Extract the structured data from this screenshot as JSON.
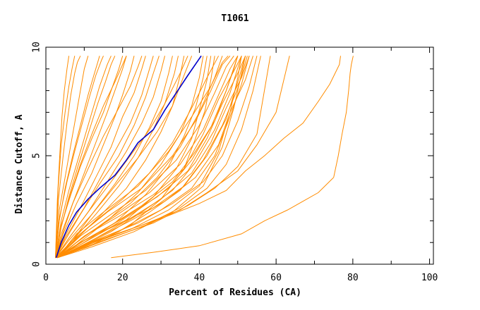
{
  "chart_data": {
    "type": "line",
    "title": "T1061",
    "xlabel": "Percent of Residues (CA)",
    "ylabel": "Distance Cutoff, A",
    "xlim": [
      0,
      101
    ],
    "ylim": [
      0,
      10
    ],
    "xticks": [
      "0",
      "20",
      "40",
      "60",
      "80",
      "100"
    ],
    "yticks": [
      "0",
      "5",
      "10"
    ],
    "grid": false,
    "legend": "none",
    "colors": {
      "background_lines": "#ff8c00",
      "highlight": "#0000cc",
      "axis": "#000000"
    },
    "highlight_series": {
      "x": [
        2.7,
        4,
        6,
        8,
        11,
        14,
        18,
        21,
        24,
        28,
        31,
        34,
        37,
        40.5
      ],
      "y": [
        0.3,
        1.0,
        1.8,
        2.4,
        3.0,
        3.5,
        4.1,
        4.8,
        5.6,
        6.2,
        7.1,
        7.9,
        8.7,
        9.6
      ]
    },
    "background_series": [
      {
        "x": [
          17,
          28,
          40,
          51,
          57,
          63,
          67,
          71,
          75
        ],
        "y": [
          0.3,
          0.55,
          0.85,
          1.4,
          2.0,
          2.5,
          2.9,
          3.3,
          4.0
        ]
      },
      {
        "x": [
          75,
          76.2,
          77.2,
          78.3,
          78.9,
          79.3,
          79.6,
          80.1
        ],
        "y": [
          4.0,
          5.0,
          6.0,
          7.0,
          8.0,
          8.8,
          9.2,
          9.6
        ]
      },
      {
        "x": [
          3,
          10,
          20,
          30,
          40,
          47,
          52,
          57,
          62,
          67,
          71,
          74,
          76.5,
          76.8
        ],
        "y": [
          0.3,
          0.9,
          1.5,
          2.1,
          2.8,
          3.4,
          4.3,
          5.0,
          5.8,
          6.5,
          7.5,
          8.3,
          9.2,
          9.6
        ]
      },
      {
        "x": [
          3,
          12,
          25,
          35,
          42,
          50,
          55,
          60,
          63.5
        ],
        "y": [
          0.3,
          1.0,
          1.8,
          2.5,
          3.3,
          4.3,
          5.5,
          7.0,
          9.6
        ]
      },
      {
        "x": [
          3,
          15,
          28,
          37,
          44,
          50,
          55,
          58.5
        ],
        "y": [
          0.3,
          1.1,
          1.9,
          2.7,
          3.5,
          4.5,
          6.0,
          9.6
        ]
      },
      {
        "x": [
          3,
          14,
          26,
          35,
          42,
          47,
          51,
          54,
          56
        ],
        "y": [
          0.3,
          1.0,
          1.8,
          2.6,
          3.5,
          4.6,
          6.2,
          8.0,
          9.6
        ]
      },
      {
        "x": [
          3,
          13,
          24,
          33,
          41,
          46,
          50,
          53,
          55
        ],
        "y": [
          0.3,
          1.1,
          1.9,
          2.8,
          3.8,
          5.0,
          6.6,
          8.2,
          9.6
        ]
      },
      {
        "x": [
          3,
          12,
          22,
          31,
          39,
          45,
          48,
          52,
          54
        ],
        "y": [
          0.3,
          1.1,
          2.0,
          2.9,
          4.0,
          5.5,
          7.0,
          8.5,
          9.6
        ]
      },
      {
        "x": [
          3,
          11,
          21,
          30,
          38,
          43,
          47,
          51,
          53
        ],
        "y": [
          0.3,
          1.2,
          2.0,
          3.0,
          4.2,
          5.6,
          7.2,
          8.6,
          9.6
        ]
      },
      {
        "x": [
          3,
          11,
          20,
          29,
          37,
          42,
          46,
          50,
          52
        ],
        "y": [
          0.3,
          1.2,
          2.1,
          3.1,
          4.3,
          5.8,
          7.4,
          8.8,
          9.6
        ]
      },
      {
        "x": [
          3,
          10,
          19,
          28,
          36,
          41,
          45,
          49,
          51
        ],
        "y": [
          0.3,
          1.3,
          2.2,
          3.2,
          4.4,
          6.0,
          7.6,
          8.9,
          9.6
        ]
      },
      {
        "x": [
          3,
          10,
          18,
          27,
          35,
          41,
          45,
          48,
          50
        ],
        "y": [
          0.3,
          1.3,
          2.2,
          3.3,
          4.6,
          6.2,
          7.8,
          9.0,
          9.6
        ]
      },
      {
        "x": [
          3,
          9,
          17,
          26,
          34,
          40,
          44,
          47,
          49
        ],
        "y": [
          0.3,
          1.3,
          2.3,
          3.4,
          4.8,
          6.4,
          7.9,
          9.1,
          9.6
        ]
      },
      {
        "x": [
          3,
          9,
          16,
          25,
          33,
          39,
          43,
          46,
          48
        ],
        "y": [
          0.3,
          1.4,
          2.4,
          3.5,
          5.0,
          6.6,
          8.0,
          9.2,
          9.6
        ]
      },
      {
        "x": [
          3,
          8,
          15,
          24,
          32,
          38,
          43,
          46,
          47.5
        ],
        "y": [
          0.3,
          1.4,
          2.4,
          3.6,
          5.2,
          6.8,
          8.2,
          9.3,
          9.6
        ]
      },
      {
        "x": [
          3,
          9,
          18,
          28,
          36,
          42,
          47,
          50,
          52
        ],
        "y": [
          0.3,
          1.0,
          1.8,
          2.6,
          3.6,
          5.0,
          6.7,
          8.4,
          9.6
        ]
      },
      {
        "x": [
          3,
          10,
          20,
          30,
          38,
          44,
          48,
          51,
          53
        ],
        "y": [
          0.3,
          0.9,
          1.6,
          2.5,
          3.5,
          5.0,
          6.8,
          8.3,
          9.6
        ]
      },
      {
        "x": [
          3,
          11,
          22,
          32,
          40,
          45,
          48,
          50,
          51
        ],
        "y": [
          0.3,
          0.9,
          1.6,
          2.5,
          3.6,
          5.2,
          7.0,
          8.6,
          9.6
        ]
      },
      {
        "x": [
          3,
          12,
          23,
          33,
          41,
          46,
          49,
          51,
          52
        ],
        "y": [
          0.3,
          0.8,
          1.5,
          2.4,
          3.6,
          5.4,
          7.2,
          8.8,
          9.6
        ]
      },
      {
        "x": [
          3,
          9,
          17,
          25,
          33,
          39,
          44,
          47,
          49,
          50
        ],
        "y": [
          0.3,
          1.0,
          1.8,
          2.7,
          3.8,
          5.2,
          6.6,
          8.0,
          9.0,
          9.6
        ]
      },
      {
        "x": [
          3,
          8,
          15,
          22,
          29,
          35,
          40,
          44,
          46
        ],
        "y": [
          0.3,
          1.0,
          1.9,
          2.8,
          4.0,
          5.4,
          7.0,
          8.6,
          9.6
        ]
      },
      {
        "x": [
          3,
          7,
          13,
          20,
          27,
          33,
          38,
          42,
          45
        ],
        "y": [
          0.3,
          1.1,
          2.0,
          3.0,
          4.2,
          5.6,
          7.2,
          8.6,
          9.6
        ]
      },
      {
        "x": [
          2.5,
          4,
          6,
          8,
          10,
          12,
          14,
          16,
          17
        ],
        "y": [
          0.3,
          2.0,
          3.4,
          4.6,
          5.8,
          7.0,
          8.2,
          9.2,
          9.6
        ]
      },
      {
        "x": [
          2.5,
          3.5,
          5,
          6.5,
          8,
          9,
          10,
          11
        ],
        "y": [
          0.3,
          2.5,
          4.0,
          5.5,
          7.0,
          8.0,
          9.0,
          9.6
        ]
      },
      {
        "x": [
          2.5,
          3.3,
          4.5,
          5.5,
          6.5,
          7.5,
          8.2,
          9
        ],
        "y": [
          0.3,
          3.0,
          5.0,
          6.5,
          7.8,
          8.8,
          9.3,
          9.6
        ]
      },
      {
        "x": [
          2.5,
          3.2,
          4,
          5,
          6,
          6.8,
          7.5
        ],
        "y": [
          0.3,
          3.5,
          5.5,
          7.0,
          8.2,
          9.0,
          9.6
        ]
      },
      {
        "x": [
          2.5,
          3,
          3.6,
          4.2,
          4.8,
          5.5,
          6
        ],
        "y": [
          0.3,
          3.0,
          5.0,
          6.8,
          8.0,
          9.0,
          9.6
        ]
      },
      {
        "x": [
          2.5,
          3.6,
          5.5,
          7.5,
          9.5,
          11.5,
          13,
          14.5,
          15
        ],
        "y": [
          0.3,
          2.2,
          3.8,
          5.2,
          6.5,
          7.8,
          8.7,
          9.4,
          9.6
        ]
      },
      {
        "x": [
          2.5,
          4,
          6.5,
          9,
          12,
          15,
          17,
          19,
          20
        ],
        "y": [
          0.3,
          1.8,
          3.2,
          4.5,
          5.8,
          7.0,
          8.0,
          9.0,
          9.6
        ]
      },
      {
        "x": [
          2.5,
          4.5,
          7,
          10,
          13,
          16,
          18,
          20,
          21
        ],
        "y": [
          0.3,
          1.5,
          2.8,
          4.2,
          5.6,
          7.0,
          8.0,
          9.0,
          9.6
        ]
      },
      {
        "x": [
          2.5,
          4.5,
          8,
          12,
          15,
          18,
          20,
          22,
          23
        ],
        "y": [
          0.3,
          1.4,
          2.8,
          4.2,
          5.5,
          6.8,
          7.8,
          8.9,
          9.6
        ]
      },
      {
        "x": [
          2.5,
          5,
          9,
          13,
          17,
          20,
          23,
          25,
          26
        ],
        "y": [
          0.3,
          1.3,
          2.6,
          4.0,
          5.4,
          6.8,
          7.9,
          9.0,
          9.6
        ]
      },
      {
        "x": [
          2.5,
          5,
          10,
          14,
          18,
          22,
          25,
          27,
          28
        ],
        "y": [
          0.3,
          1.2,
          2.6,
          3.9,
          5.2,
          6.5,
          7.8,
          9.0,
          9.6
        ]
      },
      {
        "x": [
          2.5,
          5,
          9,
          14,
          19,
          23,
          26,
          28,
          29.5
        ],
        "y": [
          0.3,
          1.1,
          2.3,
          3.7,
          5.0,
          6.4,
          7.7,
          8.8,
          9.6
        ]
      },
      {
        "x": [
          2.5,
          6,
          11,
          16,
          21,
          25,
          28,
          30,
          31
        ],
        "y": [
          0.3,
          1.2,
          2.4,
          3.8,
          5.2,
          6.5,
          7.7,
          8.9,
          9.6
        ]
      },
      {
        "x": [
          2.5,
          6,
          12,
          18,
          23,
          27,
          30,
          32,
          33
        ],
        "y": [
          0.3,
          1.1,
          2.3,
          3.7,
          5.0,
          6.3,
          7.5,
          8.8,
          9.6
        ]
      },
      {
        "x": [
          2.5,
          7,
          13,
          19,
          24,
          28,
          31,
          33.5,
          34.5
        ],
        "y": [
          0.3,
          1.1,
          2.3,
          3.6,
          4.9,
          6.2,
          7.4,
          8.8,
          9.6
        ]
      },
      {
        "x": [
          2.5,
          7,
          14,
          21,
          26,
          30,
          33,
          35,
          36
        ],
        "y": [
          0.3,
          1.0,
          2.2,
          3.5,
          4.8,
          6.1,
          7.3,
          8.7,
          9.6
        ]
      },
      {
        "x": [
          2.5,
          4,
          7,
          11,
          15,
          19,
          22,
          24,
          25
        ],
        "y": [
          0.3,
          1.4,
          2.8,
          4.4,
          5.9,
          7.2,
          8.2,
          9.1,
          9.6
        ]
      },
      {
        "x": [
          2.5,
          3.8,
          6,
          9,
          12,
          15,
          18,
          20,
          21
        ],
        "y": [
          0.3,
          1.6,
          3.0,
          4.6,
          6.0,
          7.3,
          8.4,
          9.2,
          9.6
        ]
      },
      {
        "x": [
          2.5,
          3.5,
          5,
          7,
          9,
          11,
          12.5,
          13.5,
          14
        ],
        "y": [
          0.3,
          2.0,
          3.5,
          5.0,
          6.4,
          7.8,
          8.7,
          9.3,
          9.6
        ]
      },
      {
        "x": [
          2.5,
          4,
          6,
          8.5,
          11,
          13.5,
          15.5,
          17,
          18
        ],
        "y": [
          0.3,
          1.7,
          3.1,
          4.6,
          6.0,
          7.4,
          8.4,
          9.2,
          9.6
        ]
      },
      {
        "x": [
          2.5,
          8,
          16,
          24,
          30,
          35,
          38,
          40,
          41
        ],
        "y": [
          0.3,
          0.9,
          2.0,
          3.3,
          4.6,
          6.0,
          7.3,
          8.6,
          9.6
        ]
      },
      {
        "x": [
          2.5,
          9,
          18,
          26,
          32,
          36,
          39,
          41,
          42
        ],
        "y": [
          0.3,
          0.9,
          1.9,
          3.2,
          4.5,
          5.9,
          7.2,
          8.6,
          9.6
        ]
      },
      {
        "x": [
          2.5,
          10,
          20,
          28,
          34,
          38,
          40,
          42,
          43
        ],
        "y": [
          0.3,
          0.9,
          1.9,
          3.1,
          4.4,
          5.8,
          7.1,
          8.5,
          9.6
        ]
      },
      {
        "x": [
          2.5,
          11,
          22,
          30,
          36,
          39,
          41.5,
          43,
          44
        ],
        "y": [
          0.3,
          0.8,
          1.8,
          3.0,
          4.4,
          5.8,
          7.1,
          8.5,
          9.6
        ]
      },
      {
        "x": [
          2.5,
          6,
          11,
          17,
          22,
          27,
          31,
          35,
          37
        ],
        "y": [
          0.3,
          1.2,
          2.4,
          3.8,
          5.0,
          6.2,
          7.4,
          8.8,
          9.6
        ]
      },
      {
        "x": [
          2.5,
          7,
          12,
          18,
          24,
          29,
          33,
          36,
          38
        ],
        "y": [
          0.3,
          1.1,
          2.3,
          3.6,
          4.9,
          6.1,
          7.3,
          8.7,
          9.6
        ]
      },
      {
        "x": [
          2.5,
          8,
          16,
          24,
          32,
          38,
          43,
          47,
          50
        ],
        "y": [
          0.3,
          0.8,
          1.6,
          2.5,
          3.5,
          4.8,
          6.3,
          8.0,
          9.6
        ]
      },
      {
        "x": [
          2.5,
          9,
          17,
          25,
          33,
          39,
          44,
          48,
          51
        ],
        "y": [
          0.3,
          0.8,
          1.5,
          2.4,
          3.4,
          4.7,
          6.2,
          7.9,
          9.6
        ]
      },
      {
        "x": [
          2.5,
          10,
          19,
          27,
          35,
          41,
          46,
          50,
          52.5
        ],
        "y": [
          0.3,
          0.8,
          1.5,
          2.4,
          3.4,
          4.8,
          6.4,
          8.1,
          9.6
        ]
      }
    ]
  }
}
